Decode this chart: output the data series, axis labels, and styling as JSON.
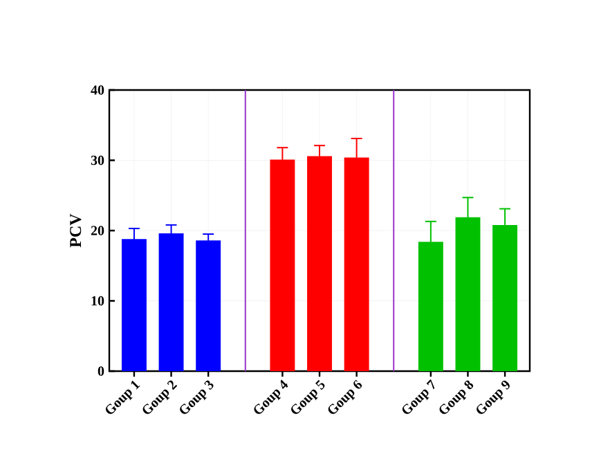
{
  "chart_data": {
    "type": "bar",
    "ylabel": "PCV",
    "categories": [
      "Goup 1",
      "Goup 2",
      "Goup 3",
      null,
      "Goup 4",
      "Goup 5",
      "Goup 6",
      null,
      "Goup 7",
      "Goup 8",
      "Goup 9"
    ],
    "values": [
      18.8,
      19.6,
      18.6,
      null,
      30.1,
      30.6,
      30.4,
      null,
      18.4,
      21.9,
      20.8
    ],
    "errors": [
      1.5,
      1.2,
      0.9,
      null,
      1.7,
      1.5,
      2.7,
      null,
      2.9,
      2.8,
      2.3
    ],
    "colors": [
      "#0000ff",
      "#0000ff",
      "#0000ff",
      null,
      "#ff0000",
      "#ff0000",
      "#ff0000",
      null,
      "#00c000",
      "#00c000",
      "#00c000"
    ],
    "ylim": [
      0,
      40
    ],
    "yticks": [
      0,
      10,
      20,
      30,
      40
    ],
    "grid": true
  }
}
